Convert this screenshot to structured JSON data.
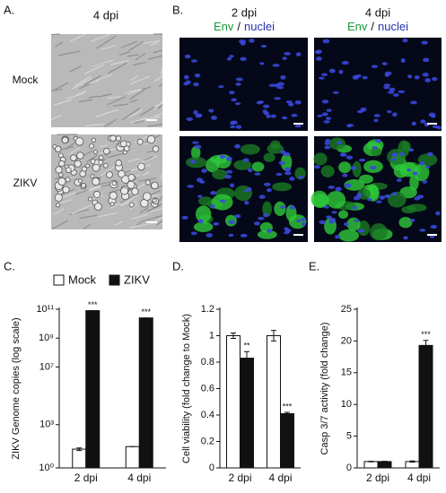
{
  "figure_a": {
    "label": "A.",
    "column": "4 dpi",
    "rows": [
      "Mock",
      "ZIKV"
    ]
  },
  "figure_b": {
    "label": "B.",
    "columns": [
      {
        "title": "2 dpi",
        "stain": "Env",
        "separator": "/",
        "counterstain": "nuclei"
      },
      {
        "title": "4 dpi",
        "stain": "Env",
        "separator": "/",
        "counterstain": "nuclei"
      }
    ]
  },
  "chart_data": [
    {
      "type": "bar",
      "panel_label": "C.",
      "y_label": "ZIKV Genome copies (log scale)",
      "log_scale": true,
      "legend": "top",
      "categories": [
        "2 dpi",
        "4 dpi"
      ],
      "series": [
        {
          "name": "Mock",
          "color": "#ffffff",
          "values": [
            20,
            30
          ],
          "errors": [
            4,
            0
          ]
        },
        {
          "name": "ZIKV",
          "color": "#111111",
          "values": [
            80000000000,
            25000000000
          ],
          "errors": [
            0,
            0
          ],
          "annotations": [
            "***",
            "***"
          ]
        }
      ],
      "ylim": [
        1,
        100000000000
      ],
      "yticks": [
        {
          "value": 1,
          "label": "10⁰"
        },
        {
          "value": 1000,
          "label": "10³"
        },
        {
          "value": 10000000,
          "label": "10⁷"
        },
        {
          "value": 1000000000,
          "label": "10⁹"
        },
        {
          "value": 100000000000,
          "label": "10¹¹"
        }
      ]
    },
    {
      "type": "bar",
      "panel_label": "D.",
      "y_label": "Cell viability (fold change to Mock)",
      "categories": [
        "2 dpi",
        "4 dpi"
      ],
      "series": [
        {
          "color": "#ffffff",
          "values": [
            1,
            1
          ],
          "errors": [
            0.02,
            0.04
          ]
        },
        {
          "color": "#111111",
          "values": [
            0.83,
            0.41
          ],
          "errors": [
            0.05,
            0.01
          ],
          "annotations": [
            "**",
            "***"
          ]
        }
      ],
      "ylim": [
        0,
        1.2
      ],
      "yticks": [
        0,
        0.2,
        0.4,
        0.6,
        0.8,
        1,
        1.2
      ]
    },
    {
      "type": "bar",
      "panel_label": "E.",
      "y_label": "Casp 3/7 activity (fold change)",
      "categories": [
        "2 dpi",
        "4 dpi"
      ],
      "series": [
        {
          "color": "#ffffff",
          "values": [
            1,
            1
          ],
          "errors": [
            0.05,
            0.1
          ]
        },
        {
          "color": "#111111",
          "values": [
            1,
            19.3
          ],
          "errors": [
            0.05,
            0.8
          ],
          "annotations": [
            null,
            "***"
          ]
        }
      ],
      "ylim": [
        0,
        25
      ],
      "yticks": [
        0,
        5,
        10,
        15,
        20,
        25
      ]
    }
  ]
}
